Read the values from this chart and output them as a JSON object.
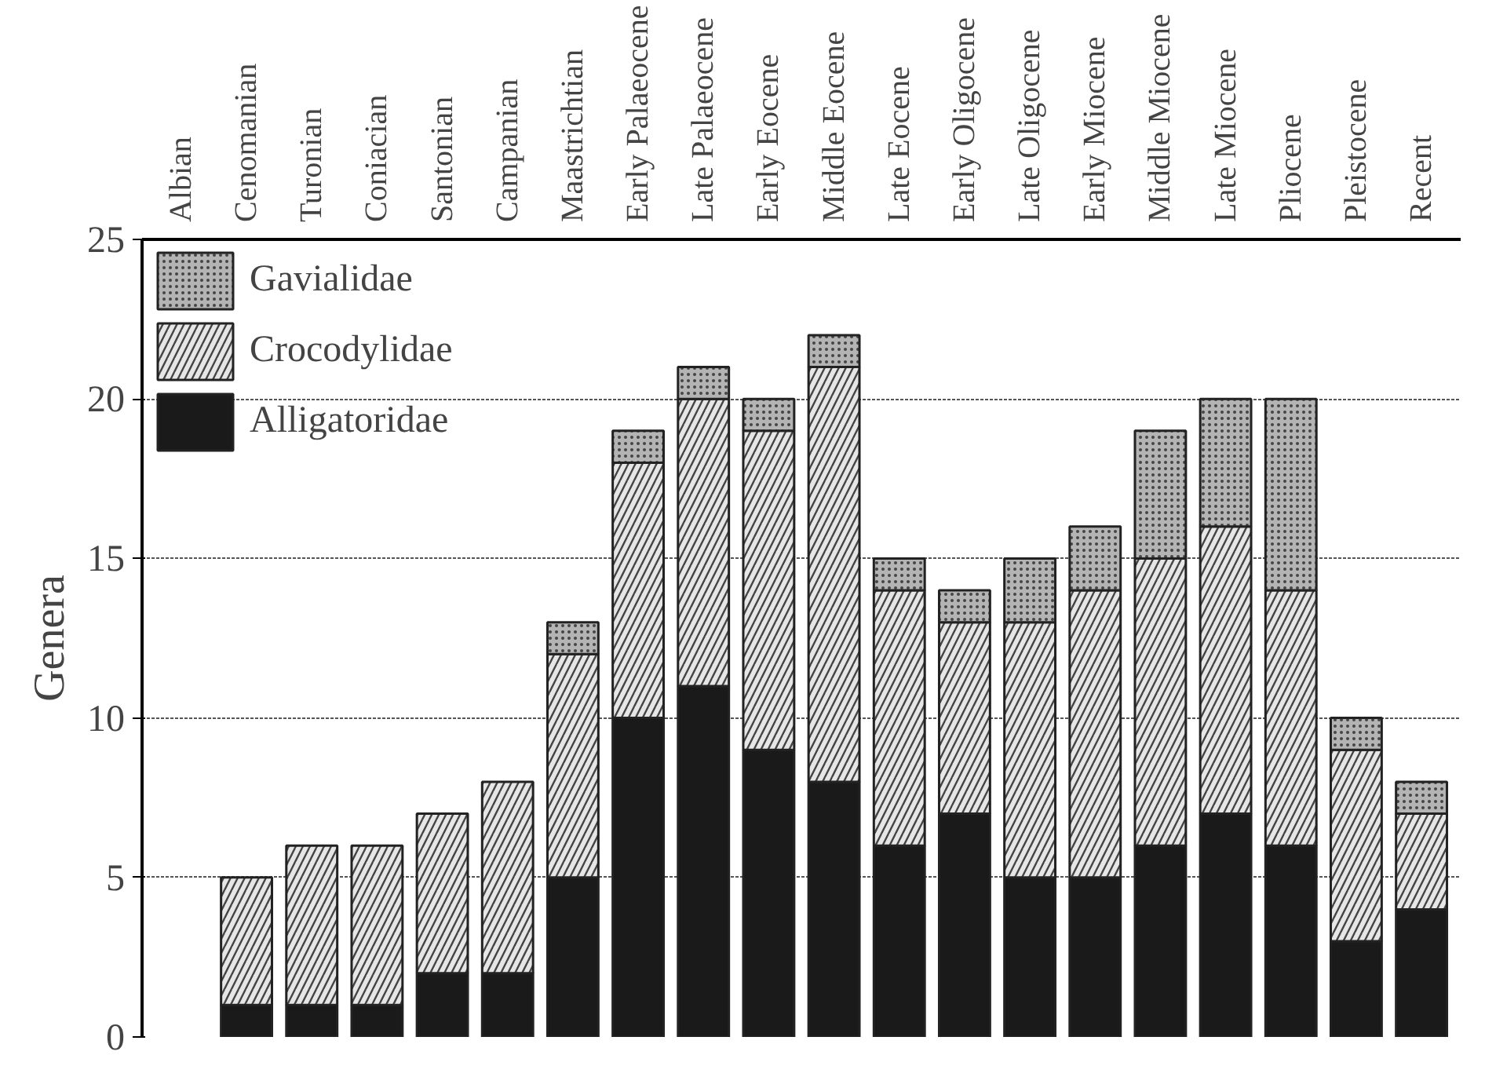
{
  "chart_data": {
    "type": "bar",
    "stacked": true,
    "ylabel": "Genera",
    "categories": [
      "Albian",
      "Cenomanian",
      "Turonian",
      "Coniacian",
      "Santonian",
      "Campanian",
      "Maastrichtian",
      "Early Palaeocene",
      "Late Palaeocene",
      "Early Eocene",
      "Middle Eocene",
      "Late Eocene",
      "Early Oligocene",
      "Late Oligocene",
      "Early Miocene",
      "Middle Miocene",
      "Late Miocene",
      "Pliocene",
      "Pleistocene",
      "Recent"
    ],
    "series": [
      {
        "name": "Alligatoridae",
        "color": "#1a1a1a",
        "values": [
          0,
          1,
          1,
          1,
          2,
          2,
          5,
          10,
          11,
          9,
          8,
          6,
          7,
          5,
          5,
          6,
          7,
          6,
          3,
          4
        ]
      },
      {
        "name": "Crocodylidae",
        "color": "#e6e6e6",
        "values": [
          0,
          4,
          5,
          5,
          5,
          6,
          7,
          8,
          9,
          10,
          13,
          8,
          6,
          8,
          9,
          9,
          9,
          8,
          6,
          3
        ]
      },
      {
        "name": "Gavialidae",
        "color": "#b4b4b4",
        "values": [
          0,
          0,
          0,
          0,
          0,
          0,
          1,
          1,
          1,
          1,
          1,
          1,
          1,
          2,
          2,
          4,
          4,
          6,
          1,
          1
        ]
      }
    ],
    "ylim": [
      0,
      25
    ],
    "yticks": [
      0,
      5,
      10,
      15,
      20,
      25
    ],
    "grid": "y",
    "legend": "top left"
  }
}
